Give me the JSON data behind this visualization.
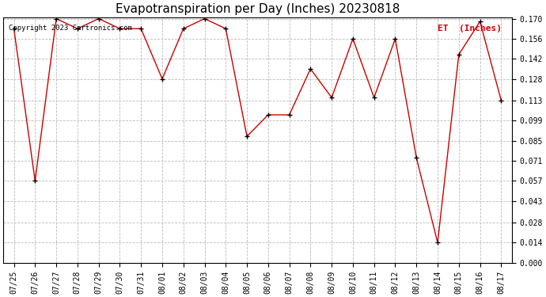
{
  "title": "Evapotranspiration per Day (Inches) 20230818",
  "legend_label": "ET  (Inches)",
  "copyright_text": "Copyright 2023 Cartronics.com",
  "dates": [
    "07/25",
    "07/26",
    "07/27",
    "07/28",
    "07/29",
    "07/30",
    "07/31",
    "08/01",
    "08/02",
    "08/03",
    "08/04",
    "08/05",
    "08/06",
    "08/07",
    "08/08",
    "08/09",
    "08/10",
    "08/11",
    "08/12",
    "08/13",
    "08/14",
    "08/15",
    "08/16",
    "08/17"
  ],
  "values": [
    0.163,
    0.057,
    0.17,
    0.163,
    0.17,
    0.163,
    0.163,
    0.128,
    0.163,
    0.17,
    0.163,
    0.088,
    0.103,
    0.103,
    0.135,
    0.115,
    0.156,
    0.115,
    0.156,
    0.073,
    0.014,
    0.145,
    0.168,
    0.113
  ],
  "line_color": "#cc0000",
  "marker_color": "#000000",
  "background_color": "#ffffff",
  "grid_color": "#bbbbbb",
  "title_fontsize": 11,
  "tick_fontsize": 7,
  "legend_color": "#cc0000",
  "copyright_color": "#000000",
  "copyright_fontsize": 6.5,
  "ylim": [
    0.0,
    0.17
  ],
  "yticks": [
    0.0,
    0.014,
    0.028,
    0.043,
    0.057,
    0.071,
    0.085,
    0.099,
    0.113,
    0.128,
    0.142,
    0.156,
    0.17
  ]
}
